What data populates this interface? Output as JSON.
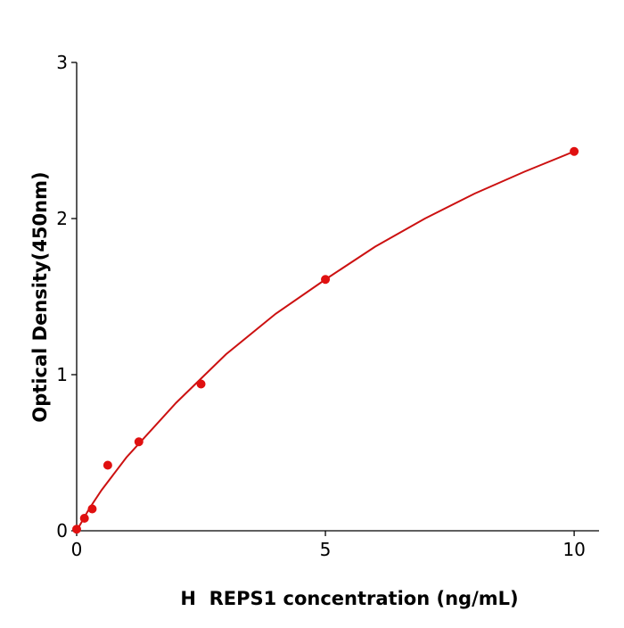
{
  "chart_data": {
    "type": "scatter",
    "x_label": "H  REPS1 concentration (ng/mL)",
    "y_label": "Optical Density(450nm)",
    "xlim": [
      0,
      10.5
    ],
    "xticks": [
      0,
      5,
      10
    ],
    "ylim": [
      0,
      3
    ],
    "yticks": [
      0,
      1,
      2,
      3
    ],
    "series": [
      {
        "type": "scatter",
        "color": "#e01010",
        "x": [
          0,
          0.156,
          0.3125,
          0.625,
          1.25,
          2.5,
          5,
          10
        ],
        "values": [
          0.01,
          0.08,
          0.14,
          0.42,
          0.57,
          0.94,
          1.61,
          2.43
        ]
      },
      {
        "type": "line",
        "color": "#cc1111",
        "x": [
          0,
          0.25,
          0.5,
          1,
          2,
          3,
          4,
          5,
          6,
          7,
          8,
          9,
          10
        ],
        "values": [
          0,
          0.14,
          0.26,
          0.47,
          0.82,
          1.13,
          1.39,
          1.61,
          1.82,
          2.0,
          2.16,
          2.3,
          2.43
        ]
      }
    ]
  }
}
